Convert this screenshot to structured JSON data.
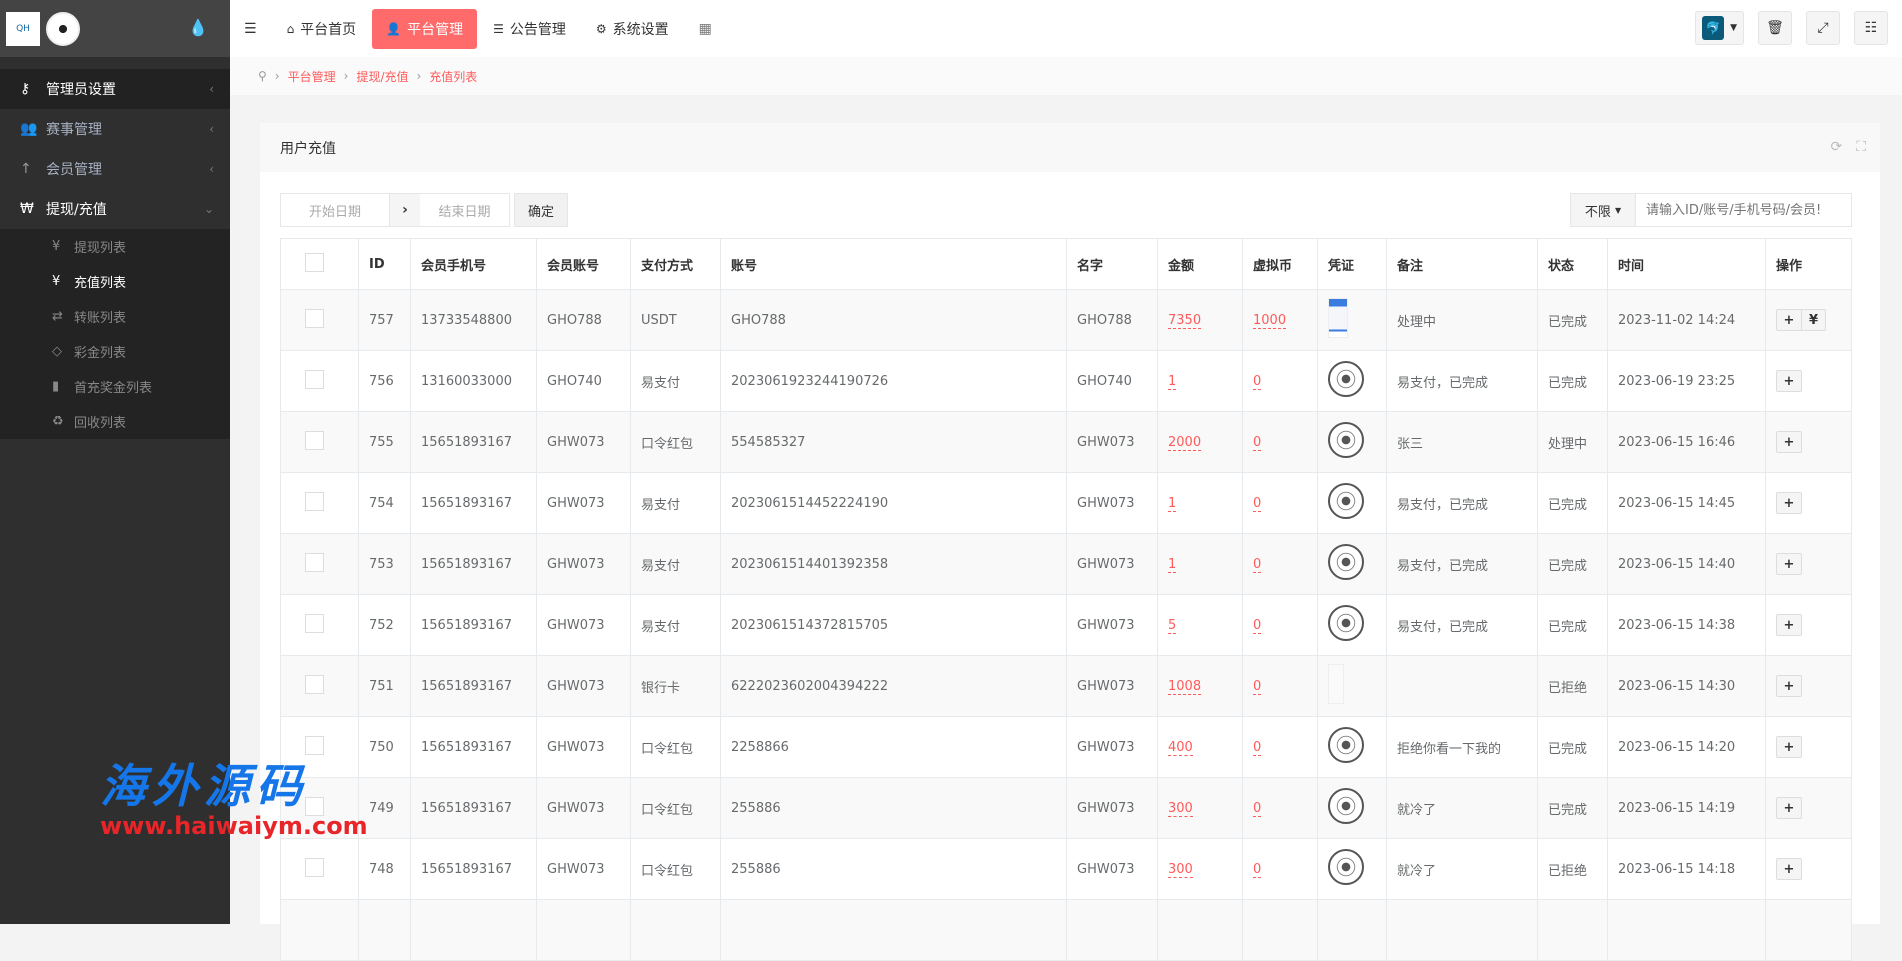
{
  "sidebar": {
    "logo_text": "QH",
    "items": [
      {
        "label": "管理员设置",
        "icon": "key-icon"
      },
      {
        "label": "赛事管理",
        "icon": "users-icon"
      },
      {
        "label": "会员管理",
        "icon": "person-icon"
      },
      {
        "label": "提现/充值",
        "icon": "won-icon"
      }
    ],
    "subitems": [
      {
        "label": "提现列表",
        "icon": "yen-icon"
      },
      {
        "label": "充值列表",
        "icon": "yen-icon"
      },
      {
        "label": "转账列表",
        "icon": "exchange-icon"
      },
      {
        "label": "彩金列表",
        "icon": "diamond-icon"
      },
      {
        "label": "首充奖金列表",
        "icon": "file-icon"
      },
      {
        "label": "回收列表",
        "icon": "recycle-icon"
      }
    ]
  },
  "topnav": {
    "items": [
      {
        "label": "平台首页",
        "icon": "home-icon"
      },
      {
        "label": "平台管理",
        "icon": "user-icon"
      },
      {
        "label": "公告管理",
        "icon": "list-icon"
      },
      {
        "label": "系统设置",
        "icon": "gear-icon"
      }
    ],
    "accent": "#ff6b6b"
  },
  "breadcrumb": [
    "平台管理",
    "提现/充值",
    "充值列表"
  ],
  "panel": {
    "title": "用户充值"
  },
  "toolbar": {
    "start_placeholder": "开始日期",
    "end_placeholder": "结束日期",
    "confirm": "确定",
    "filter": "不限",
    "search_placeholder": "请输入ID/账号/手机号码/会员!"
  },
  "table": {
    "headers": [
      "ID",
      "会员手机号",
      "会员账号",
      "支付方式",
      "账号",
      "名字",
      "金额",
      "虚拟币",
      "凭证",
      "备注",
      "状态",
      "时间",
      "操作"
    ],
    "rows": [
      {
        "id": "757",
        "phone": "13733548800",
        "acct": "GHO788",
        "pay": "USDT",
        "no": "GHO788",
        "name": "GHO788",
        "amt": "7350",
        "coin": "1000",
        "v": "doc",
        "note": "处理中",
        "status": "已完成",
        "time": "2023-11-02 14:24",
        "yen": "¥"
      },
      {
        "id": "756",
        "phone": "13160033000",
        "acct": "GHO740",
        "pay": "易支付",
        "no": "2023061923244190726",
        "name": "GHO740",
        "amt": "1",
        "coin": "0",
        "v": "ball",
        "note": "易支付，已完成",
        "status": "已完成",
        "time": "2023-06-19 23:25"
      },
      {
        "id": "755",
        "phone": "15651893167",
        "acct": "GHW073",
        "pay": "口令红包",
        "no": "554585327",
        "name": "GHW073",
        "amt": "2000",
        "coin": "0",
        "v": "ball",
        "note": "张三",
        "status": "处理中",
        "time": "2023-06-15 16:46"
      },
      {
        "id": "754",
        "phone": "15651893167",
        "acct": "GHW073",
        "pay": "易支付",
        "no": "2023061514452224190",
        "name": "GHW073",
        "amt": "1",
        "coin": "0",
        "v": "ball",
        "note": "易支付，已完成",
        "status": "已完成",
        "time": "2023-06-15 14:45"
      },
      {
        "id": "753",
        "phone": "15651893167",
        "acct": "GHW073",
        "pay": "易支付",
        "no": "2023061514401392358",
        "name": "GHW073",
        "amt": "1",
        "coin": "0",
        "v": "ball",
        "note": "易支付，已完成",
        "status": "已完成",
        "time": "2023-06-15 14:40"
      },
      {
        "id": "752",
        "phone": "15651893167",
        "acct": "GHW073",
        "pay": "易支付",
        "no": "2023061514372815705",
        "name": "GHW073",
        "amt": "5",
        "coin": "0",
        "v": "ball",
        "note": "易支付，已完成",
        "status": "已完成",
        "time": "2023-06-15 14:38"
      },
      {
        "id": "751",
        "phone": "15651893167",
        "acct": "GHW073",
        "pay": "银行卡",
        "no": "6222023602004394222",
        "name": "GHW073",
        "amt": "1008",
        "coin": "0",
        "v": "blank",
        "note": "",
        "status": "已拒绝",
        "time": "2023-06-15 14:30"
      },
      {
        "id": "750",
        "phone": "15651893167",
        "acct": "GHW073",
        "pay": "口令红包",
        "no": "2258866",
        "name": "GHW073",
        "amt": "400",
        "coin": "0",
        "v": "ball",
        "note": "拒绝你看一下我的",
        "status": "已完成",
        "time": "2023-06-15 14:20"
      },
      {
        "id": "749",
        "phone": "15651893167",
        "acct": "GHW073",
        "pay": "口令红包",
        "no": "255886",
        "name": "GHW073",
        "amt": "300",
        "coin": "0",
        "v": "ball",
        "note": "就冷了",
        "status": "已完成",
        "time": "2023-06-15 14:19"
      },
      {
        "id": "748",
        "phone": "15651893167",
        "acct": "GHW073",
        "pay": "口令红包",
        "no": "255886",
        "name": "GHW073",
        "amt": "300",
        "coin": "0",
        "v": "ball",
        "note": "就冷了",
        "status": "已拒绝",
        "time": "2023-06-15 14:18"
      }
    ]
  },
  "watermark": {
    "title": "海外源码",
    "url": "www.haiwaiym.com"
  }
}
